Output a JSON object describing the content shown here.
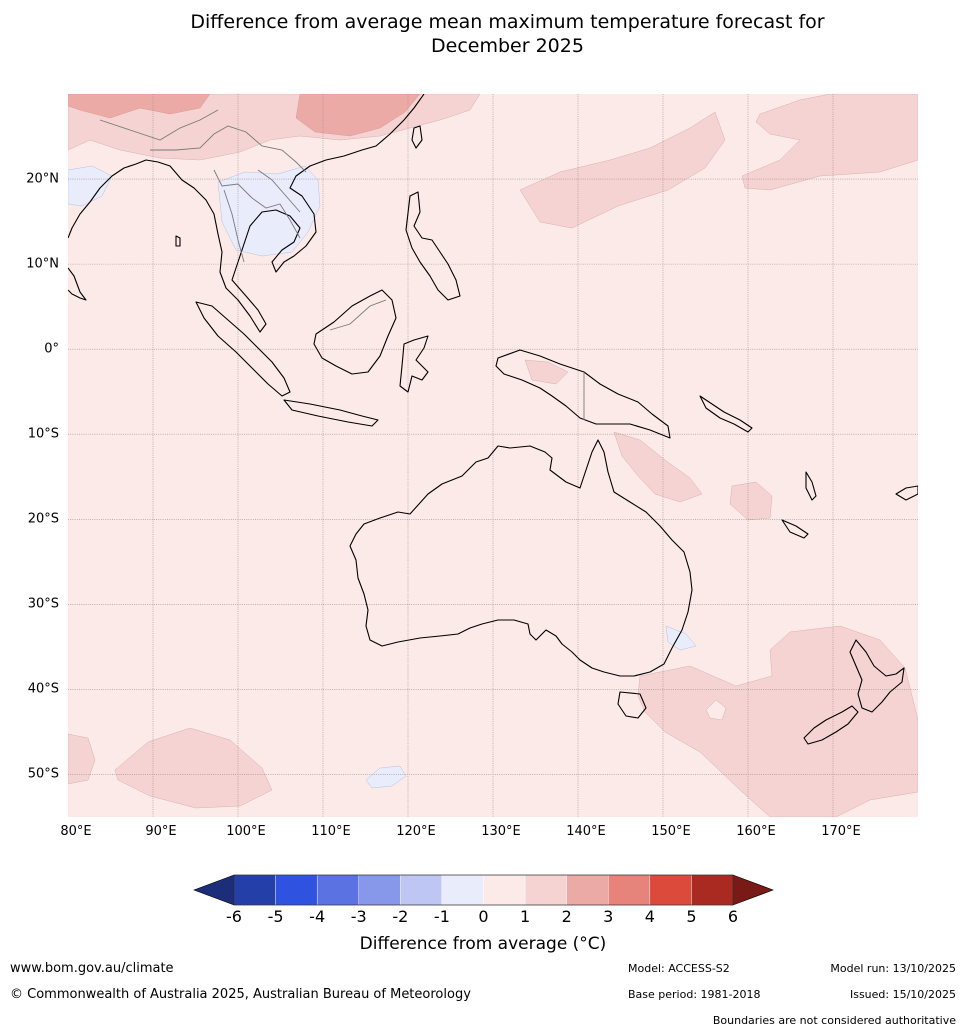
{
  "title_line1": "Difference from average mean maximum temperature forecast for",
  "title_line2": "December 2025",
  "map": {
    "lon_range": [
      80,
      180
    ],
    "lat_range": [
      -55,
      30
    ],
    "background_color": "#fbeae8",
    "grid_color": "#9a8a8a",
    "lat_labels": [
      {
        "lat": 20,
        "text": "20°N"
      },
      {
        "lat": 10,
        "text": "10°N"
      },
      {
        "lat": 0,
        "text": "0°"
      },
      {
        "lat": -10,
        "text": "10°S"
      },
      {
        "lat": -20,
        "text": "20°S"
      },
      {
        "lat": -30,
        "text": "30°S"
      },
      {
        "lat": -40,
        "text": "40°S"
      },
      {
        "lat": -50,
        "text": "50°S"
      }
    ],
    "lon_labels": [
      {
        "lon": 80,
        "text": "80°E"
      },
      {
        "lon": 90,
        "text": "90°E"
      },
      {
        "lon": 100,
        "text": "100°E"
      },
      {
        "lon": 110,
        "text": "110°E"
      },
      {
        "lon": 120,
        "text": "120°E"
      },
      {
        "lon": 130,
        "text": "130°E"
      },
      {
        "lon": 140,
        "text": "140°E"
      },
      {
        "lon": 150,
        "text": "150°E"
      },
      {
        "lon": 160,
        "text": "160°E"
      },
      {
        "lon": 170,
        "text": "170°E"
      }
    ]
  },
  "colorbar": {
    "ticks": [
      "-6",
      "-5",
      "-4",
      "-3",
      "-2",
      "-1",
      "0",
      "1",
      "2",
      "3",
      "4",
      "5",
      "6"
    ],
    "colors": [
      "#253fa8",
      "#2f52e0",
      "#5b72e2",
      "#8797ea",
      "#bec7f4",
      "#e8ecfb",
      "#fbeae8",
      "#f5d3d2",
      "#ecaaa6",
      "#e6847c",
      "#dc4a3c",
      "#a82a20"
    ],
    "extend_low_color": "#1c2d7a",
    "extend_high_color": "#7a1a16",
    "label": "Difference from average (°C)"
  },
  "footer": {
    "website": "www.bom.gov.au/climate",
    "copyright": "© Commonwealth of Australia 2025, Australian Bureau of Meteorology",
    "model": "Model: ACCESS-S2",
    "base_period": "Base period: 1981-2018",
    "model_run": "Model run: 13/10/2025",
    "issued": "Issued: 15/10/2025",
    "disclaimer": "Boundaries are not considered authoritative"
  }
}
